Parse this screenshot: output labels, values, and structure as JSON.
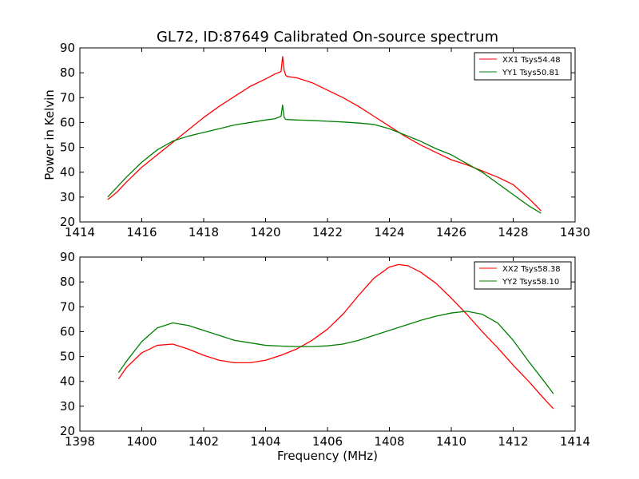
{
  "chart_data": {
    "type": "line",
    "title": "GL72, ID:87649 Calibrated On-source spectrum",
    "panels": [
      {
        "ylabel": "Power in Kelvin",
        "xlabel": "",
        "xlim": [
          1414,
          1430
        ],
        "ylim": [
          20,
          90
        ],
        "xticks": [
          1414,
          1416,
          1418,
          1420,
          1422,
          1424,
          1426,
          1428,
          1430
        ],
        "yticks": [
          20,
          30,
          40,
          50,
          60,
          70,
          80,
          90
        ],
        "legend_position": "upper right",
        "series": [
          {
            "name": "XX1 Tsys54.48",
            "color": "#ff0000",
            "x": [
              1414.9,
              1415.2,
              1415.5,
              1416.0,
              1416.5,
              1417.0,
              1417.5,
              1418.0,
              1418.5,
              1419.0,
              1419.5,
              1420.0,
              1420.3,
              1420.5,
              1420.55,
              1420.6,
              1420.65,
              1420.7,
              1421.0,
              1421.5,
              1422.0,
              1422.5,
              1423.0,
              1423.5,
              1424.0,
              1424.5,
              1425.0,
              1425.5,
              1426.0,
              1426.5,
              1427.0,
              1427.5,
              1428.0,
              1428.5,
              1428.9
            ],
            "y": [
              29,
              32,
              36,
              42,
              47,
              52,
              57,
              62,
              66.5,
              70.5,
              74.5,
              77.5,
              79.5,
              80.5,
              86.5,
              81,
              79,
              78.5,
              78,
              76,
              73,
              70,
              66.5,
              62.5,
              58.5,
              54.5,
              51,
              48,
              45,
              43,
              40.5,
              38,
              35,
              29.5,
              24.5
            ]
          },
          {
            "name": "YY1 Tsys50.81",
            "color": "#007f00",
            "x": [
              1414.9,
              1415.2,
              1415.5,
              1416.0,
              1416.5,
              1417.0,
              1417.5,
              1418.0,
              1418.5,
              1419.0,
              1419.5,
              1420.0,
              1420.3,
              1420.5,
              1420.55,
              1420.6,
              1420.65,
              1420.7,
              1421.0,
              1421.5,
              1422.0,
              1422.5,
              1423.0,
              1423.5,
              1424.0,
              1424.5,
              1425.0,
              1425.5,
              1426.0,
              1426.5,
              1427.0,
              1427.5,
              1428.0,
              1428.5,
              1428.9
            ],
            "y": [
              30,
              34,
              38,
              44,
              49,
              52.5,
              54.5,
              56,
              57.5,
              59,
              60,
              61,
              61.5,
              62.5,
              67,
              62,
              61.3,
              61.2,
              61,
              60.8,
              60.5,
              60.2,
              59.8,
              59.2,
              57.5,
              55,
              52.5,
              49.5,
              47,
              43.5,
              40,
              35.5,
              31,
              26.5,
              23.5
            ]
          }
        ]
      },
      {
        "ylabel": "",
        "xlabel": "Frequency (MHz)",
        "xlim": [
          1398,
          1414
        ],
        "ylim": [
          20,
          90
        ],
        "xticks": [
          1398,
          1400,
          1402,
          1404,
          1406,
          1408,
          1410,
          1412,
          1414
        ],
        "yticks": [
          20,
          30,
          40,
          50,
          60,
          70,
          80,
          90
        ],
        "legend_position": "upper right",
        "series": [
          {
            "name": "XX2 Tsys58.38",
            "color": "#ff0000",
            "x": [
              1399.25,
              1399.5,
              1400.0,
              1400.5,
              1401.0,
              1401.5,
              1402.0,
              1402.5,
              1403.0,
              1403.5,
              1404.0,
              1404.5,
              1405.0,
              1405.5,
              1406.0,
              1406.5,
              1407.0,
              1407.5,
              1408.0,
              1408.3,
              1408.6,
              1409.0,
              1409.5,
              1410.0,
              1410.5,
              1411.0,
              1411.5,
              1412.0,
              1412.5,
              1413.0,
              1413.3
            ],
            "y": [
              41,
              45.5,
              51.5,
              54.5,
              55,
              53,
              50.5,
              48.5,
              47.5,
              47.5,
              48.5,
              50.5,
              53,
              56.5,
              61,
              67,
              74.5,
              81.5,
              86,
              87,
              86.5,
              84,
              79.5,
              73.5,
              67,
              60,
              53.5,
              46.5,
              40,
              33,
              29
            ]
          },
          {
            "name": "YY2 Tsys58.10",
            "color": "#007f00",
            "x": [
              1399.25,
              1399.5,
              1400.0,
              1400.5,
              1401.0,
              1401.5,
              1402.0,
              1402.5,
              1403.0,
              1403.5,
              1404.0,
              1404.5,
              1405.0,
              1405.5,
              1406.0,
              1406.5,
              1407.0,
              1407.5,
              1408.0,
              1408.5,
              1409.0,
              1409.5,
              1410.0,
              1410.5,
              1411.0,
              1411.5,
              1412.0,
              1412.5,
              1413.0,
              1413.3
            ],
            "y": [
              43.5,
              48,
              56,
              61.5,
              63.5,
              62.5,
              60.5,
              58.5,
              56.5,
              55.5,
              54.5,
              54.2,
              54,
              54,
              54.3,
              55,
              56.5,
              58.5,
              60.5,
              62.5,
              64.5,
              66.2,
              67.5,
              68.2,
              67,
              63.5,
              56.5,
              48,
              40,
              35
            ]
          }
        ]
      }
    ]
  }
}
